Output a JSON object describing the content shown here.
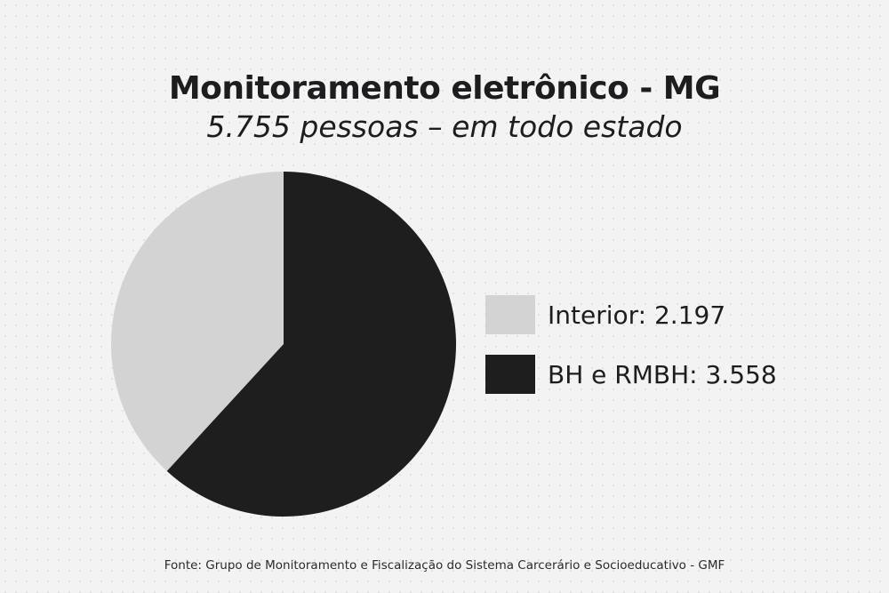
{
  "chart_data": {
    "type": "pie",
    "title": "Monitoramento eletrônico - MG",
    "subtitle": "5.755 pessoas – em todo estado",
    "categories": [
      "Interior",
      "BH e RMBH"
    ],
    "values": [
      2197,
      3558
    ],
    "labels": [
      "Interior: 2.197",
      "BH e RMBH: 3.558"
    ],
    "colors": [
      "#d3d3d3",
      "#1e1e1e"
    ],
    "legend_position": "right",
    "source": "Fonte: Grupo de Monitoramento e Fiscalização do Sistema Carcerário e Socioeducativo - GMF"
  }
}
